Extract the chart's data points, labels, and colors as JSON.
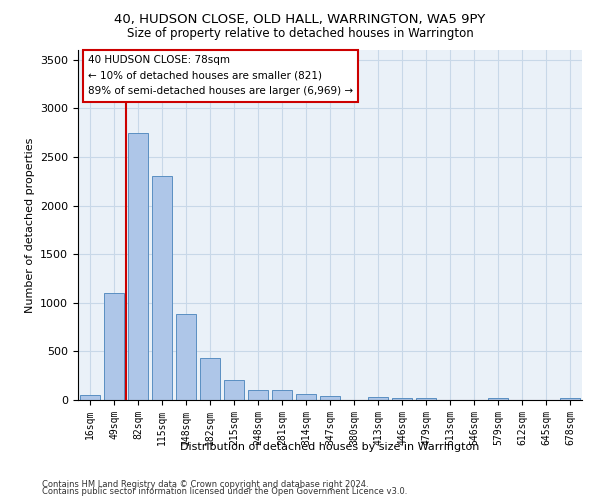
{
  "title1": "40, HUDSON CLOSE, OLD HALL, WARRINGTON, WA5 9PY",
  "title2": "Size of property relative to detached houses in Warrington",
  "xlabel": "Distribution of detached houses by size in Warrington",
  "ylabel": "Number of detached properties",
  "bar_labels": [
    "16sqm",
    "49sqm",
    "82sqm",
    "115sqm",
    "148sqm",
    "182sqm",
    "215sqm",
    "248sqm",
    "281sqm",
    "314sqm",
    "347sqm",
    "380sqm",
    "413sqm",
    "446sqm",
    "479sqm",
    "513sqm",
    "546sqm",
    "579sqm",
    "612sqm",
    "645sqm",
    "678sqm"
  ],
  "bar_values": [
    55,
    1100,
    2750,
    2300,
    880,
    430,
    210,
    105,
    100,
    60,
    40,
    5,
    35,
    25,
    20,
    5,
    5,
    20,
    5,
    5,
    20
  ],
  "bar_color": "#aec6e8",
  "bar_edge_color": "#5a8fc2",
  "vline_x_index": 2,
  "vline_color": "#cc0000",
  "annotation_text": "40 HUDSON CLOSE: 78sqm\n← 10% of detached houses are smaller (821)\n89% of semi-detached houses are larger (6,969) →",
  "annotation_box_color": "#ffffff",
  "annotation_box_edge_color": "#cc0000",
  "ylim": [
    0,
    3600
  ],
  "yticks": [
    0,
    500,
    1000,
    1500,
    2000,
    2500,
    3000,
    3500
  ],
  "grid_color": "#c8d8e8",
  "background_color": "#eaf1f8",
  "footer1": "Contains HM Land Registry data © Crown copyright and database right 2024.",
  "footer2": "Contains public sector information licensed under the Open Government Licence v3.0."
}
